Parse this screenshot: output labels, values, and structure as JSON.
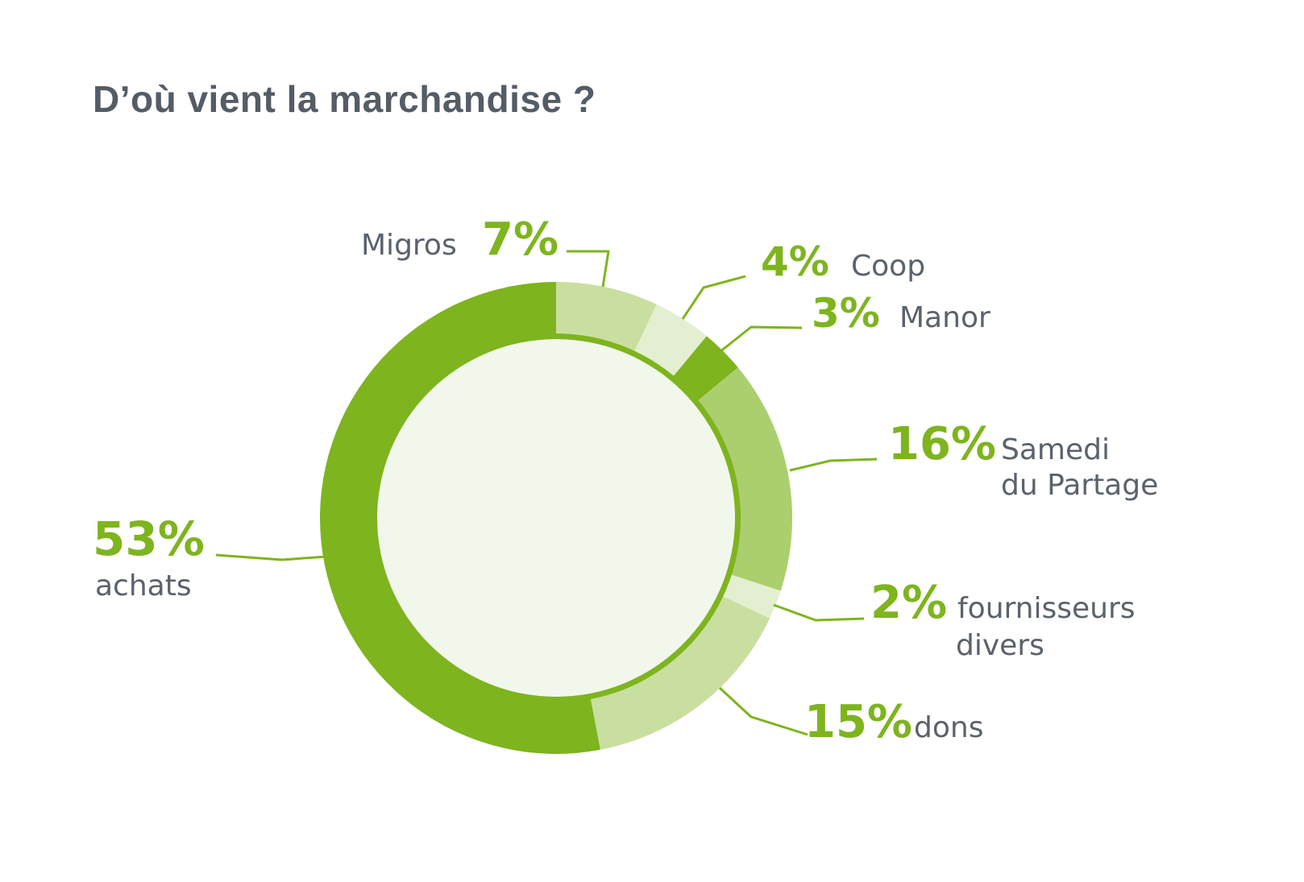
{
  "chart_data": {
    "type": "pie",
    "title": "D’où vient la marchandise ?",
    "slices": [
      {
        "pct_label": "7%",
        "value": 7,
        "label": [
          "Migros"
        ],
        "color": "#c9dfa0"
      },
      {
        "pct_label": "4%",
        "value": 4,
        "label": [
          "Coop"
        ],
        "color": "#e3efd0"
      },
      {
        "pct_label": "3%",
        "value": 3,
        "label": [
          "Manor"
        ],
        "color": "#7eb41e"
      },
      {
        "pct_label": "16%",
        "value": 16,
        "label": [
          "Samedi",
          "du Partage"
        ],
        "color": "#abcf6e"
      },
      {
        "pct_label": "2%",
        "value": 2,
        "label": [
          "fournisseurs",
          "divers"
        ],
        "color": "#e3efd0"
      },
      {
        "pct_label": "15%",
        "value": 15,
        "label": [
          "dons"
        ],
        "color": "#c9dfa0"
      },
      {
        "pct_label": "53%",
        "value": 53,
        "label": [
          "achats"
        ],
        "color": "#7eb41e"
      }
    ],
    "donut_center_color": "#f2f7ec",
    "inner_ring_color": "#7eb41e",
    "accent_color": "#7eb41e",
    "text_color": "#5a626c"
  }
}
